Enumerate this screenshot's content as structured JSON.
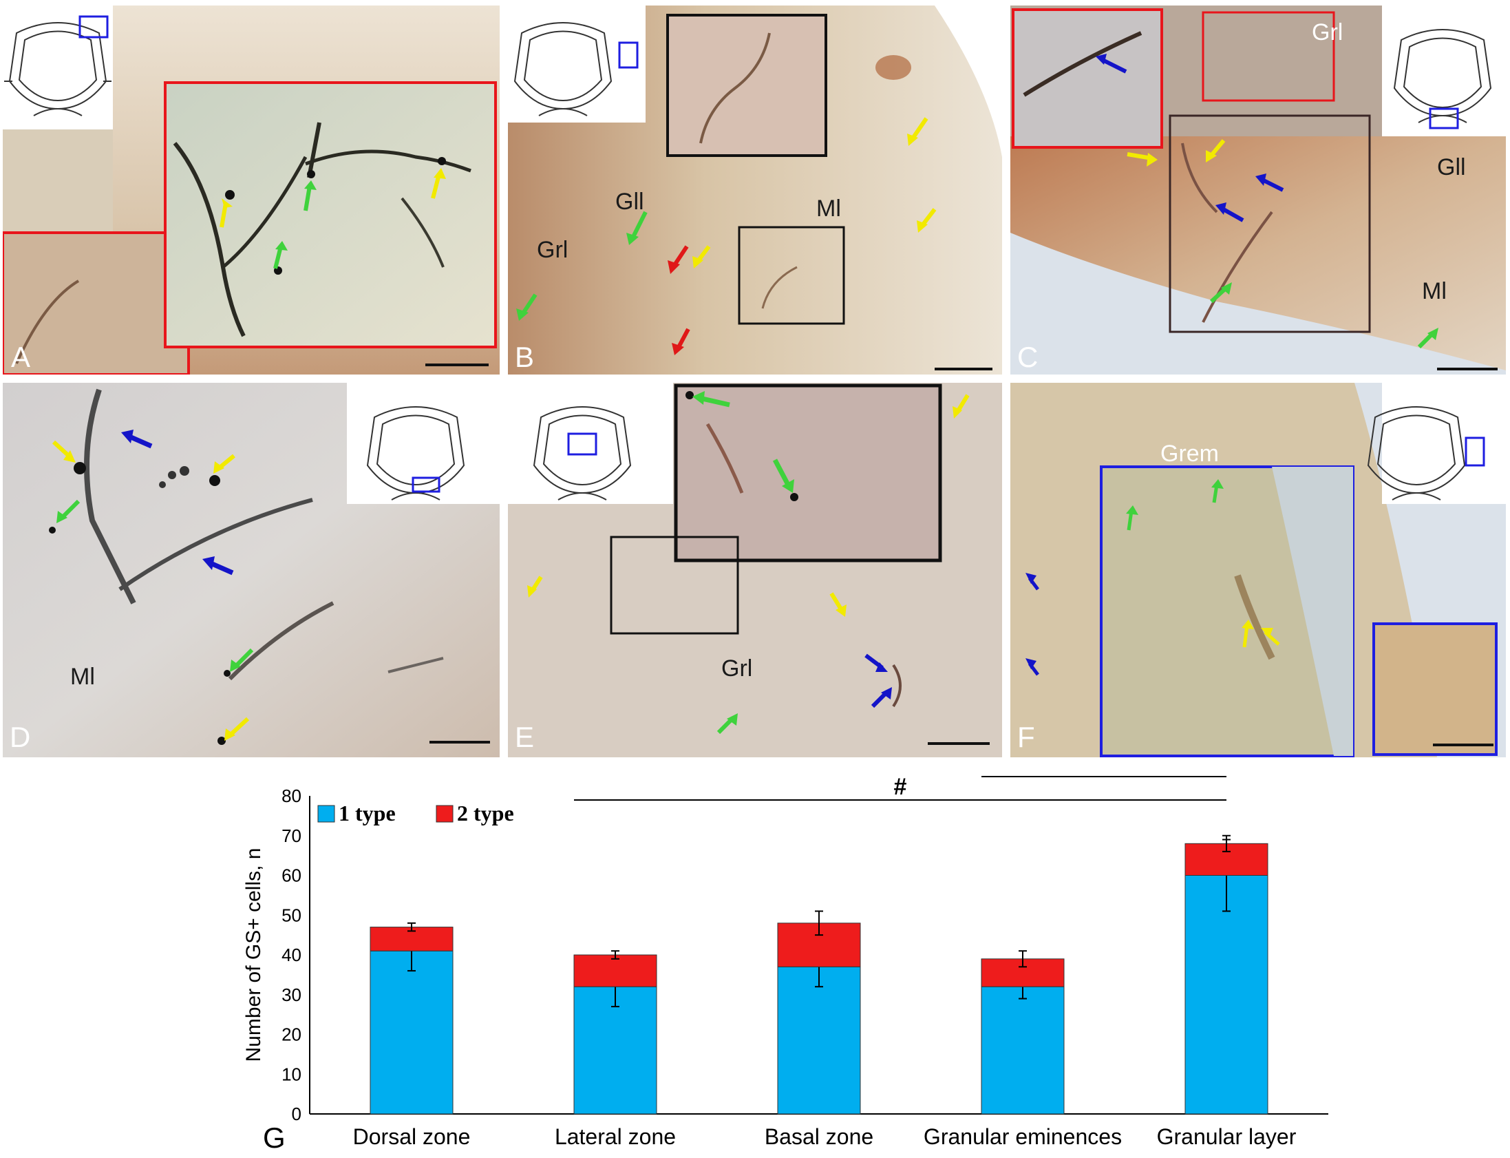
{
  "panels": {
    "A": {
      "label": "A"
    },
    "B": {
      "label": "B",
      "regions": [
        "Gll",
        "Grl",
        "Ml"
      ]
    },
    "C": {
      "label": "C",
      "regions": [
        "Grl",
        "Gll",
        "Ml"
      ]
    },
    "D": {
      "label": "D",
      "regions": [
        "Ml"
      ]
    },
    "E": {
      "label": "E",
      "regions": [
        "Grl"
      ]
    },
    "F": {
      "label": "F",
      "regions": [
        "Grem"
      ]
    },
    "G": {
      "label": "G"
    }
  },
  "colors": {
    "tissue_light": "#e6dccb",
    "tissue_warm": "#c9a17a",
    "tissue_gray": "#d6d3ce",
    "arrow_yellow": "#f2ea00",
    "arrow_green": "#3fd23c",
    "arrow_blue": "#1414c8",
    "arrow_red": "#e01818",
    "box_red": "#e8151b",
    "box_blue": "#1e1ee0",
    "box_black": "#111111",
    "bar_type1": "#00aeef",
    "bar_type2": "#ee1c1c"
  },
  "chart_data": {
    "type": "bar",
    "stacked": true,
    "categories": [
      "Dorsal zone",
      "Lateral zone",
      "Basal zone",
      "Granular eminences",
      "Granular layer"
    ],
    "series": [
      {
        "name": "1 type",
        "values": [
          41,
          32,
          37,
          32,
          60
        ],
        "err": [
          5,
          5,
          5,
          3,
          9
        ],
        "color": "#00aeef"
      },
      {
        "name": "2 type",
        "values": [
          6,
          8,
          11,
          7,
          8
        ],
        "err": [
          1,
          1,
          3,
          2,
          2
        ],
        "color": "#ee1c1c"
      }
    ],
    "ylabel": "Number of GS+  cells, n",
    "ylim": [
      0,
      80
    ],
    "yticks": [
      0,
      10,
      20,
      30,
      40,
      50,
      60,
      70,
      80
    ],
    "legend": "top-left",
    "significance": [
      {
        "from": 1,
        "to": 4,
        "label": "#"
      },
      {
        "from": 3,
        "to": 4,
        "label": "#"
      }
    ]
  }
}
